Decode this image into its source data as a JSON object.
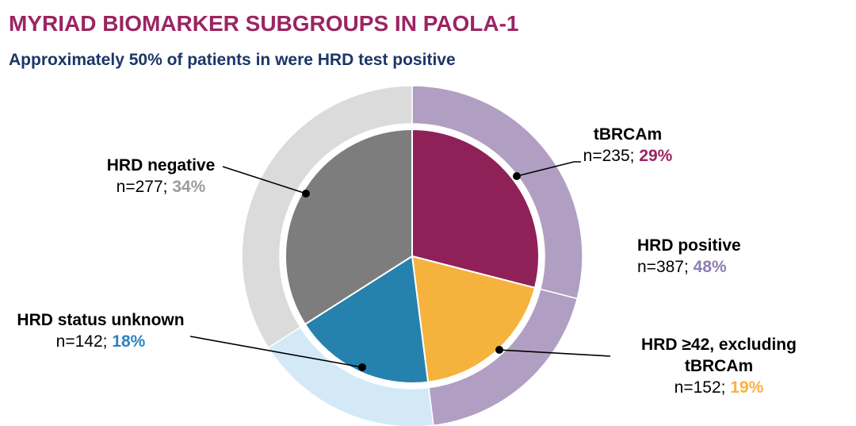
{
  "title": "MYRIAD BIOMARKER SUBGROUPS IN PAOLA-1",
  "subtitle": "Approximately 50% of patients in were HRD test positive",
  "colors": {
    "title": "#9C2462",
    "subtitle": "#1B3668",
    "leader_line": "#000000"
  },
  "chart_data": {
    "type": "pie",
    "subtype": "double-ring-donut",
    "title": "MYRIAD BIOMARKER SUBGROUPS IN PAOLA-1",
    "subtitle": "Approximately 50% of patients in were HRD test positive",
    "units": "patients",
    "start_angle_deg": 0,
    "direction": "clockwise",
    "legend": "none",
    "inner_series": {
      "name": "Myriad biomarker subgroups",
      "segments": [
        {
          "label": "tBRCAm",
          "n": 235,
          "pct": 29,
          "color": "#8F2158"
        },
        {
          "label": "HRD ≥42, excluding tBRCAm",
          "n": 152,
          "pct": 19,
          "color": "#F5B23D"
        },
        {
          "label": "HRD status unknown",
          "n": 142,
          "pct": 18,
          "color": "#2581AE"
        },
        {
          "label": "HRD negative",
          "n": 277,
          "pct": 34,
          "color": "#7D7D7D"
        }
      ]
    },
    "outer_series": {
      "name": "HRD test result",
      "segments": [
        {
          "label": "HRD positive",
          "n": 387,
          "pct": 48,
          "color": "#B19FC3",
          "spans_inner": [
            0,
            1
          ]
        },
        {
          "label": "HRD status unknown",
          "n": 142,
          "pct": 18,
          "color": "#D3E9F6",
          "spans_inner": [
            2
          ]
        },
        {
          "label": "HRD negative",
          "n": 277,
          "pct": 34,
          "color": "#DBDBDB",
          "spans_inner": [
            3
          ]
        }
      ]
    }
  },
  "labels": {
    "tbrcam": {
      "name": "tBRCAm",
      "n_text": "n=235; ",
      "pct_text": "29%",
      "pct_color": "#9D2362"
    },
    "hrd_positive": {
      "name": "HRD positive",
      "n_text": "n=387; ",
      "pct_text": "48%",
      "pct_color": "#8E7DB4"
    },
    "hrd_ge42": {
      "name_line1": "HRD ≥42, excluding",
      "name_line2": "tBRCAm",
      "n_text": "n=152; ",
      "pct_text": "19%",
      "pct_color": "#FBB040"
    },
    "hrd_unknown": {
      "name": "HRD status unknown",
      "n_text": "n=142; ",
      "pct_text": "18%",
      "pct_color": "#2A84C0"
    },
    "hrd_negative": {
      "name": "HRD negative",
      "n_text": "n=277; ",
      "pct_text": "34%",
      "pct_color": "#9C9C9C"
    }
  }
}
